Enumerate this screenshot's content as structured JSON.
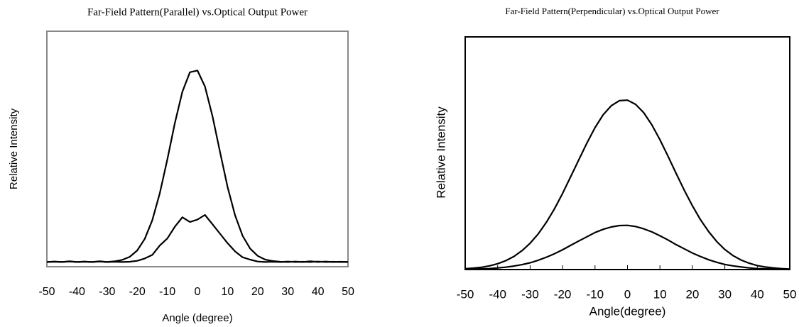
{
  "chart_data": [
    {
      "type": "line",
      "title": "Far-Field Pattern(Parallel) vs.Optical Output Power",
      "x_label": "Angle (degree)",
      "y_label": "Relative Intensity",
      "x": [
        -50,
        -47.5,
        -45,
        -42.5,
        -40,
        -37.5,
        -35,
        -32.5,
        -30,
        -27.5,
        -25,
        -22.5,
        -20,
        -17.5,
        -15,
        -12.5,
        -10,
        -7.5,
        -5,
        -2.5,
        0,
        2.5,
        5,
        7.5,
        10,
        12.5,
        15,
        17.5,
        20,
        22.5,
        25,
        27.5,
        30,
        32.5,
        35,
        37.5,
        40,
        42.5,
        45,
        47.5,
        50
      ],
      "series": [
        {
          "color": "#000000",
          "values": [
            0.02,
            0.022,
            0.02,
            0.023,
            0.02,
            0.022,
            0.02,
            0.023,
            0.02,
            0.023,
            0.029,
            0.042,
            0.069,
            0.118,
            0.197,
            0.312,
            0.455,
            0.61,
            0.743,
            0.826,
            0.833,
            0.765,
            0.639,
            0.487,
            0.339,
            0.218,
            0.131,
            0.077,
            0.046,
            0.03,
            0.024,
            0.021,
            0.02,
            0.022,
            0.02,
            0.023,
            0.02,
            0.022,
            0.02,
            0.021,
            0.02
          ]
        },
        {
          "color": "#000000",
          "values": [
            0.02,
            0.021,
            0.02,
            0.022,
            0.02,
            0.021,
            0.02,
            0.022,
            0.02,
            0.021,
            0.02,
            0.021,
            0.025,
            0.035,
            0.05,
            0.09,
            0.12,
            0.17,
            0.21,
            0.19,
            0.2,
            0.22,
            0.18,
            0.14,
            0.1,
            0.065,
            0.04,
            0.03,
            0.022,
            0.02,
            0.021,
            0.02,
            0.022,
            0.02,
            0.021,
            0.02,
            0.022,
            0.02,
            0.021,
            0.02,
            0.02
          ]
        }
      ],
      "xlim": [
        -50,
        50
      ],
      "ylim": [
        0,
        1
      ],
      "xticks": [
        -50,
        -40,
        -30,
        -20,
        -10,
        0,
        10,
        20,
        30,
        40,
        50
      ],
      "tick_marks": false,
      "frame_color": "#888888"
    },
    {
      "type": "line",
      "title": "Far-Field Pattern(Perpendicular) vs.Optical Output Power",
      "x_label": "Angle(degree)",
      "y_label": "Relative Intensity",
      "x": [
        -50,
        -47.5,
        -45,
        -42.5,
        -40,
        -37.5,
        -35,
        -32.5,
        -30,
        -27.5,
        -25,
        -22.5,
        -20,
        -17.5,
        -15,
        -12.5,
        -10,
        -7.5,
        -5,
        -2.5,
        0,
        2.5,
        5,
        7.5,
        10,
        12.5,
        15,
        17.5,
        20,
        22.5,
        25,
        27.5,
        30,
        32.5,
        35,
        37.5,
        40,
        42.5,
        45,
        47.5,
        50
      ],
      "series": [
        {
          "color": "#000000",
          "values": [
            0.0035,
            0.006,
            0.0099,
            0.016,
            0.025,
            0.038,
            0.056,
            0.081,
            0.113,
            0.153,
            0.203,
            0.261,
            0.327,
            0.399,
            0.472,
            0.544,
            0.61,
            0.665,
            0.704,
            0.726,
            0.728,
            0.71,
            0.674,
            0.622,
            0.558,
            0.487,
            0.413,
            0.341,
            0.274,
            0.214,
            0.163,
            0.12,
            0.086,
            0.06,
            0.041,
            0.027,
            0.017,
            0.011,
            0.007,
            0.004,
            0.002
          ]
        },
        {
          "color": "#000000",
          "values": [
            0.001,
            0.002,
            0.003,
            0.004,
            0.007,
            0.01,
            0.015,
            0.021,
            0.029,
            0.04,
            0.053,
            0.068,
            0.085,
            0.104,
            0.123,
            0.141,
            0.159,
            0.173,
            0.183,
            0.189,
            0.19,
            0.185,
            0.175,
            0.162,
            0.145,
            0.127,
            0.107,
            0.089,
            0.071,
            0.056,
            0.042,
            0.031,
            0.022,
            0.016,
            0.011,
            0.007,
            0.004,
            0.003,
            0.002,
            0.001,
            0.001
          ]
        }
      ],
      "xlim": [
        -50,
        50
      ],
      "ylim": [
        0,
        1
      ],
      "xticks": [
        -50,
        -40,
        -30,
        -20,
        -10,
        0,
        10,
        20,
        30,
        40,
        50
      ],
      "tick_marks": true,
      "frame_color": "#000000"
    }
  ]
}
